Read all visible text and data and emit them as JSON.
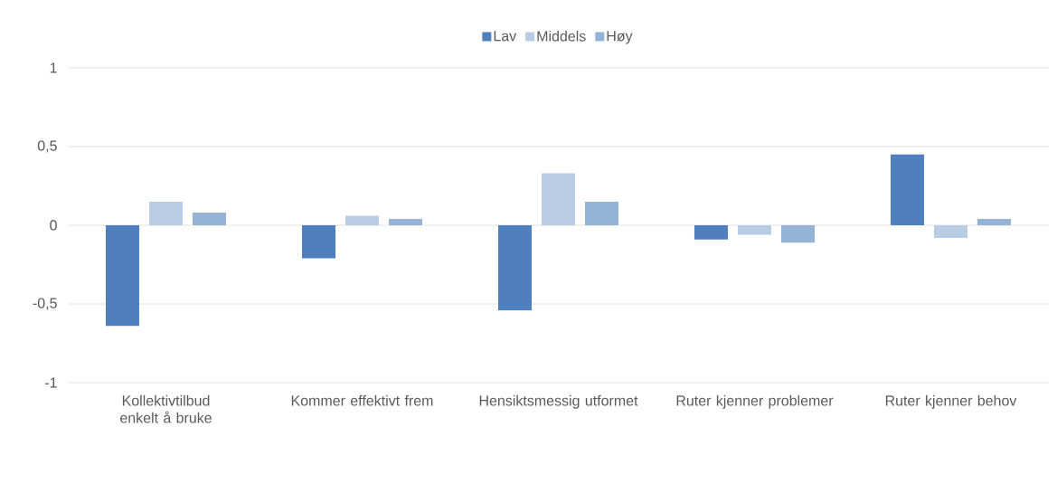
{
  "chart_data": {
    "type": "bar",
    "categories": [
      "Kollektivtilbud enkelt å bruke",
      "Kommer effektivt frem",
      "Hensiktsmessig utformet",
      "Ruter kjenner problemer",
      "Ruter kjenner behov"
    ],
    "series": [
      {
        "name": "Lav",
        "color": "#4f7fbe",
        "values": [
          -0.64,
          -0.21,
          -0.54,
          -0.09,
          0.45
        ]
      },
      {
        "name": "Middels",
        "color": "#b8cce4",
        "values": [
          0.15,
          0.06,
          0.33,
          -0.06,
          -0.08
        ]
      },
      {
        "name": "Høy",
        "color": "#95b3d7",
        "values": [
          0.08,
          0.04,
          0.15,
          -0.11,
          0.04
        ]
      }
    ],
    "ylim": [
      -1,
      1
    ],
    "yticks": [
      -1,
      {
        "value": -0.5,
        "label": "-0,5"
      },
      0,
      {
        "value": 0.5,
        "label": "0,5"
      },
      1
    ],
    "grid": "y",
    "legend": "top"
  }
}
